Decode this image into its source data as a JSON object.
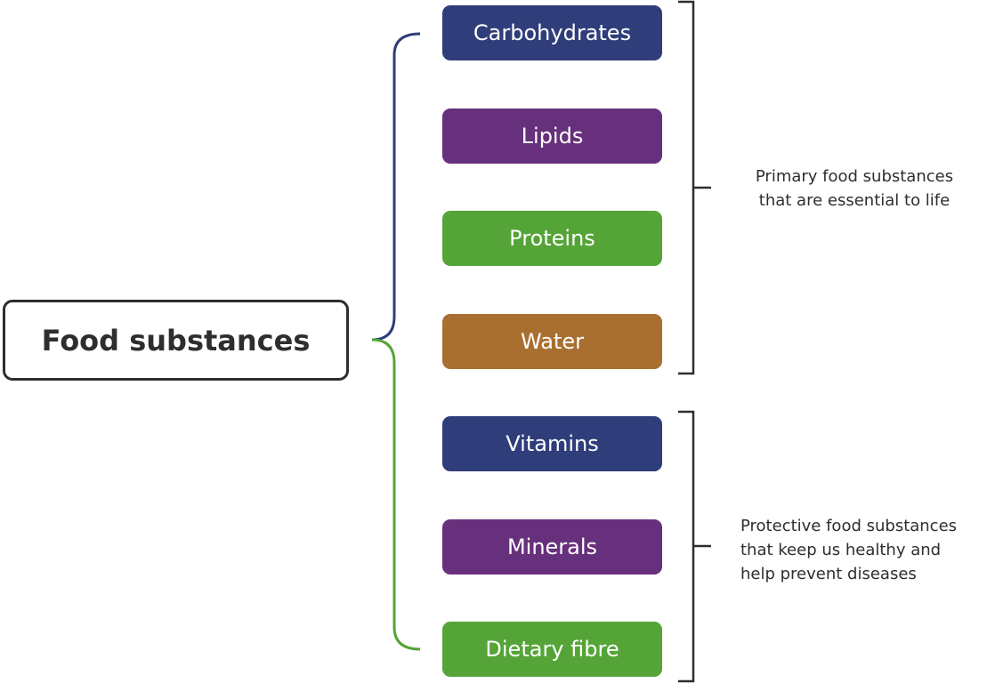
{
  "root": {
    "label": "Food substances"
  },
  "nodes": [
    {
      "label": "Carbohydrates",
      "color": "#2f3e7a"
    },
    {
      "label": "Lipids",
      "color": "#67307c"
    },
    {
      "label": "Proteins",
      "color": "#55a437"
    },
    {
      "label": "Water",
      "color": "#a96f31"
    },
    {
      "label": "Vitamins",
      "color": "#2f3e7a"
    },
    {
      "label": "Minerals",
      "color": "#67307c"
    },
    {
      "label": "Dietary fibre",
      "color": "#55a437"
    }
  ],
  "groups": [
    {
      "lines": [
        "Primary food substances",
        "that are essential to life"
      ]
    },
    {
      "lines": [
        "Protective food substances",
        "that keep us healthy and",
        "help prevent diseases"
      ]
    }
  ],
  "colors": {
    "upper_connector": "#2f3e7a",
    "lower_connector": "#55a437",
    "bracket": "#2e2e2e",
    "text": "#2e2e2e"
  }
}
